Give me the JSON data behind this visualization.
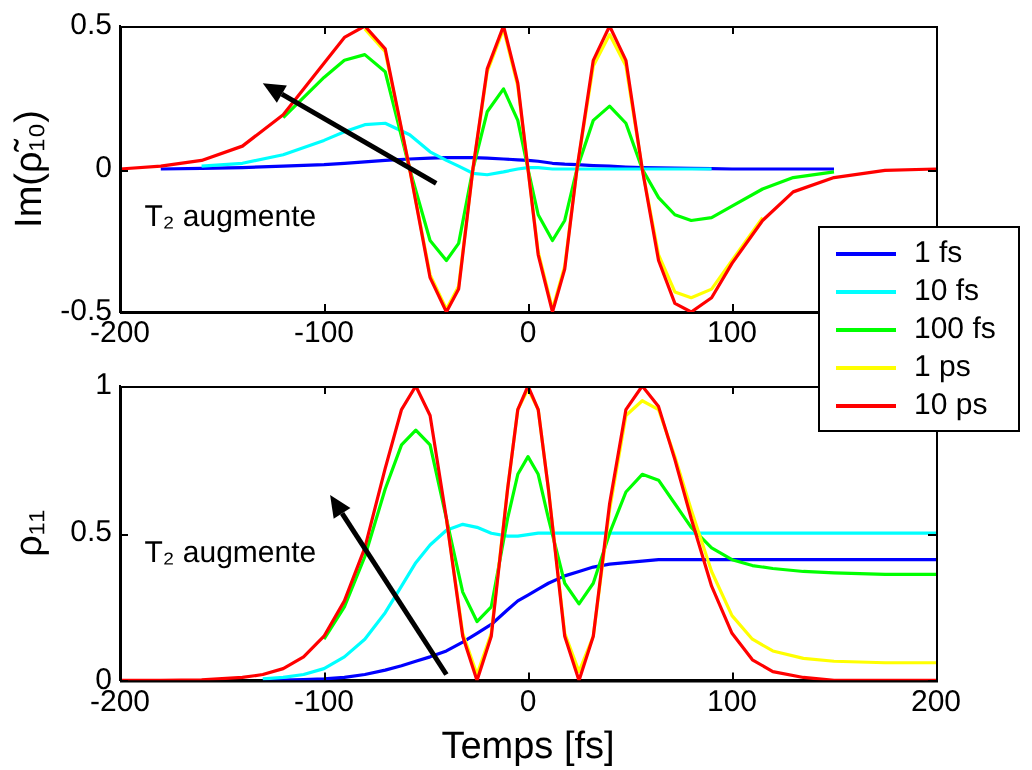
{
  "chart_data": [
    {
      "type": "line",
      "ylabel": "Im(ρ̃₁₀)",
      "annotations": [
        "T₂ augmente"
      ],
      "legend": "bottom right",
      "marker": "none",
      "line_style": "solid",
      "x": [
        -200,
        -180,
        -160,
        -140,
        -120,
        -100,
        -90,
        -80,
        -70,
        -58,
        -48,
        -40,
        -34,
        -27,
        -20,
        -12,
        -5,
        0,
        5,
        12,
        18,
        24,
        32,
        40,
        48,
        56,
        64,
        72,
        80,
        90,
        100,
        115,
        130,
        150,
        175,
        200
      ],
      "xlim": [
        -200,
        200
      ],
      "xticks": [
        -200,
        -100,
        0,
        100
      ],
      "ylim": [
        -0.5,
        0.5
      ],
      "yticks": [
        -0.5,
        0,
        0.5
      ],
      "series": [
        {
          "name": "1 fs",
          "color": "#0000ff",
          "values": [
            null,
            0,
            0.002,
            0.005,
            0.01,
            0.015,
            0.02,
            0.025,
            0.03,
            0.035,
            0.038,
            0.04,
            0.04,
            0.04,
            0.038,
            0.035,
            0.032,
            0.03,
            0.027,
            0.02,
            0.017,
            0.015,
            0.012,
            0.01,
            0.007,
            0.005,
            0.004,
            0.003,
            0.002,
            0.001,
            0,
            0,
            0,
            0,
            null,
            null
          ]
        },
        {
          "name": "10 fs",
          "color": "#00ffff",
          "values": [
            null,
            null,
            0.01,
            0.02,
            0.05,
            0.1,
            0.13,
            0.155,
            0.16,
            0.12,
            0.06,
            0.03,
            0.01,
            -0.015,
            -0.02,
            -0.01,
            0,
            0.005,
            0.005,
            0,
            0,
            0,
            0,
            0,
            0,
            0,
            0,
            0,
            0,
            0,
            null,
            null,
            null,
            null,
            null,
            null
          ]
        },
        {
          "name": "100 fs",
          "color": "#00ff00",
          "values": [
            null,
            null,
            null,
            null,
            0.18,
            0.32,
            0.38,
            0.4,
            0.34,
            0,
            -0.25,
            -0.32,
            -0.26,
            0,
            0.2,
            0.28,
            0.17,
            0,
            -0.16,
            -0.25,
            -0.18,
            0,
            0.17,
            0.22,
            0.16,
            0,
            -0.1,
            -0.16,
            -0.18,
            -0.17,
            -0.13,
            -0.07,
            -0.03,
            -0.01,
            null,
            null
          ]
        },
        {
          "name": "1 ps",
          "color": "#ffff00",
          "values": [
            null,
            null,
            null,
            null,
            null,
            null,
            null,
            0.49,
            0.41,
            0,
            -0.37,
            -0.49,
            -0.41,
            0,
            0.34,
            0.49,
            0.29,
            0,
            -0.29,
            -0.49,
            -0.34,
            0,
            0.36,
            0.47,
            0.36,
            0,
            -0.3,
            -0.43,
            -0.45,
            -0.42,
            -0.32,
            -0.17,
            null,
            null,
            null,
            null
          ]
        },
        {
          "name": "10 ps",
          "color": "#ff0000",
          "values": [
            0,
            0.01,
            0.03,
            0.08,
            0.19,
            0.37,
            0.46,
            0.5,
            0.42,
            0,
            -0.38,
            -0.5,
            -0.42,
            0,
            0.35,
            0.5,
            0.3,
            0,
            -0.3,
            -0.5,
            -0.35,
            0,
            0.38,
            0.5,
            0.38,
            0,
            -0.32,
            -0.47,
            -0.5,
            -0.45,
            -0.33,
            -0.18,
            -0.08,
            -0.03,
            -0.005,
            0
          ]
        }
      ]
    },
    {
      "type": "line",
      "xlabel": "Temps [fs]",
      "ylabel": "ρ₁₁",
      "annotations": [
        "T₂ augmente"
      ],
      "marker": "none",
      "line_style": "solid",
      "x": [
        -200,
        -180,
        -160,
        -140,
        -130,
        -120,
        -110,
        -100,
        -90,
        -80,
        -70,
        -62,
        -55,
        -48,
        -40,
        -32,
        -25,
        -18,
        -10,
        -5,
        0,
        5,
        10,
        18,
        25,
        32,
        40,
        48,
        56,
        64,
        72,
        80,
        90,
        100,
        110,
        120,
        135,
        150,
        175,
        200
      ],
      "xlim": [
        -200,
        200
      ],
      "xticks": [
        -200,
        -100,
        0,
        100,
        200
      ],
      "ylim": [
        0,
        1
      ],
      "yticks": [
        0,
        0.5,
        1
      ],
      "series": [
        {
          "color": "#0000ff",
          "values": [
            null,
            null,
            null,
            null,
            0,
            0.001,
            0.003,
            0.005,
            0.01,
            0.02,
            0.035,
            0.05,
            0.065,
            0.08,
            0.1,
            0.13,
            0.16,
            0.19,
            0.24,
            0.27,
            0.29,
            0.31,
            0.33,
            0.355,
            0.37,
            0.385,
            0.395,
            0.4,
            0.405,
            0.41,
            0.41,
            0.41,
            0.41,
            0.41,
            0.41,
            0.41,
            0.41,
            0.41,
            0.41,
            0.41
          ]
        },
        {
          "color": "#00ffff",
          "values": [
            null,
            null,
            null,
            null,
            0.005,
            0.01,
            0.02,
            0.04,
            0.08,
            0.14,
            0.23,
            0.32,
            0.4,
            0.46,
            0.51,
            0.53,
            0.52,
            0.5,
            0.49,
            0.49,
            0.495,
            0.5,
            0.5,
            0.5,
            0.5,
            0.5,
            0.5,
            0.5,
            0.5,
            0.5,
            0.5,
            0.5,
            0.5,
            0.5,
            0.5,
            0.5,
            0.5,
            0.5,
            0.5,
            0.5
          ]
        },
        {
          "color": "#00ff00",
          "values": [
            null,
            null,
            null,
            null,
            null,
            null,
            null,
            0.14,
            0.25,
            0.42,
            0.65,
            0.8,
            0.85,
            0.8,
            0.55,
            0.3,
            0.2,
            0.25,
            0.55,
            0.7,
            0.76,
            0.7,
            0.55,
            0.33,
            0.26,
            0.33,
            0.5,
            0.64,
            0.7,
            0.68,
            0.6,
            0.52,
            0.45,
            0.41,
            0.39,
            0.38,
            0.37,
            0.365,
            0.36,
            0.36
          ]
        },
        {
          "color": "#ffff00",
          "values": [
            null,
            null,
            null,
            null,
            null,
            null,
            null,
            null,
            null,
            null,
            null,
            null,
            null,
            null,
            0.55,
            0.16,
            0.02,
            0.16,
            0.65,
            0.92,
            0.99,
            0.92,
            0.65,
            0.16,
            0.03,
            0.15,
            0.58,
            0.9,
            0.95,
            0.92,
            0.76,
            0.58,
            0.37,
            0.22,
            0.14,
            0.1,
            0.075,
            0.065,
            0.06,
            0.06
          ]
        },
        {
          "color": "#ff0000",
          "values": [
            0,
            0,
            0.002,
            0.01,
            0.02,
            0.04,
            0.08,
            0.15,
            0.27,
            0.45,
            0.72,
            0.92,
            1,
            0.9,
            0.55,
            0.15,
            0,
            0.15,
            0.65,
            0.92,
            1,
            0.92,
            0.65,
            0.15,
            0,
            0.15,
            0.6,
            0.92,
            1,
            0.93,
            0.75,
            0.55,
            0.32,
            0.16,
            0.07,
            0.03,
            0.01,
            0,
            0,
            0
          ]
        }
      ]
    }
  ]
}
